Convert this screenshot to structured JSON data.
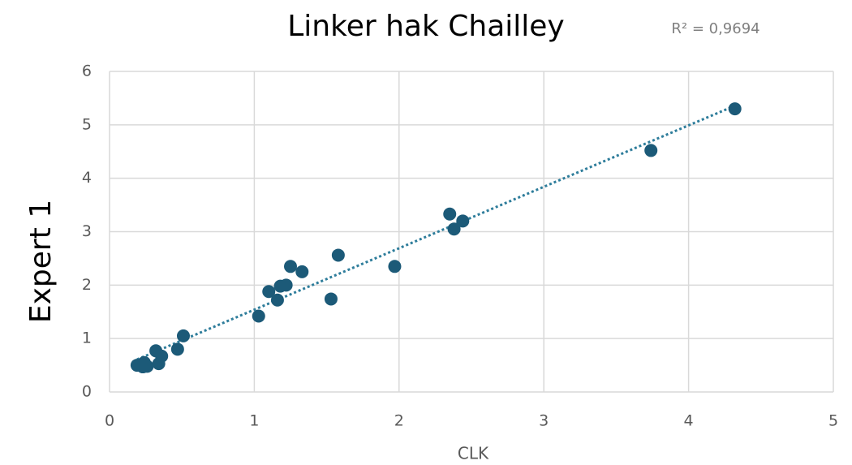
{
  "chart_data": {
    "type": "scatter",
    "title": "Linker hak Chailley",
    "x_label": "CLK",
    "y_label": "Expert 1",
    "r_squared_label": "R² = 0,9694",
    "series": [
      {
        "color": "#1c5a78",
        "x": [
          0.19,
          0.23,
          0.24,
          0.26,
          0.32,
          0.34,
          0.36,
          0.47,
          0.51,
          1.03,
          1.1,
          1.16,
          1.18,
          1.22,
          1.25,
          1.33,
          1.53,
          1.58,
          1.97,
          2.35,
          2.38,
          2.44,
          3.74,
          4.32
        ],
        "values": [
          0.5,
          0.47,
          0.55,
          0.48,
          0.77,
          0.53,
          0.67,
          0.8,
          1.05,
          1.42,
          1.88,
          1.72,
          1.98,
          2.0,
          2.35,
          2.25,
          1.74,
          2.56,
          2.35,
          3.33,
          3.05,
          3.2,
          4.52,
          5.3
        ]
      }
    ],
    "trendline": {
      "slope": 1.15,
      "intercept": 0.39,
      "color": "#2e7d9b"
    },
    "xlim": [
      0,
      5
    ],
    "xticks": [
      0,
      1,
      2,
      3,
      4,
      5
    ],
    "ylim": [
      0,
      6
    ],
    "yticks": [
      0,
      1,
      2,
      3,
      4,
      5,
      6
    ],
    "grid": true
  }
}
